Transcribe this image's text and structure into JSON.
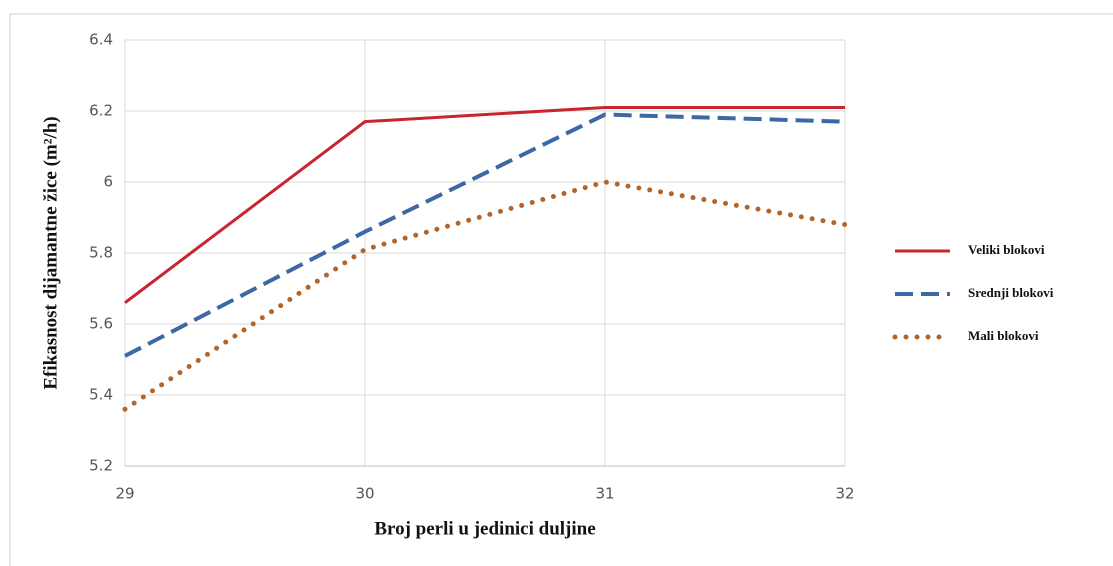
{
  "chart_data": {
    "type": "line",
    "x_label": "Broj perli u jedinici duljine",
    "y_label": "Efikasnost dijamantne žice (m²/h)",
    "x": [
      29,
      30,
      31,
      32
    ],
    "series": [
      {
        "name": "Veliki blokovi",
        "color": "#c8262e",
        "style": "solid",
        "values": [
          5.66,
          6.17,
          6.21,
          6.21
        ]
      },
      {
        "name": "Srednji blokovi",
        "color": "#3c68a5",
        "style": "dashed",
        "values": [
          5.51,
          5.86,
          6.19,
          6.17
        ]
      },
      {
        "name": "Mali blokovi",
        "color": "#b0652c",
        "style": "dotted",
        "values": [
          5.36,
          5.81,
          6.0,
          5.88
        ]
      }
    ],
    "xlim": [
      29,
      32
    ],
    "xticks": [
      29,
      30,
      31,
      32
    ],
    "ylim": [
      5.2,
      6.4
    ],
    "yticks": [
      5.2,
      5.4,
      5.6,
      5.8,
      6,
      6.2,
      6.4
    ],
    "grid": true,
    "legend": "right"
  }
}
